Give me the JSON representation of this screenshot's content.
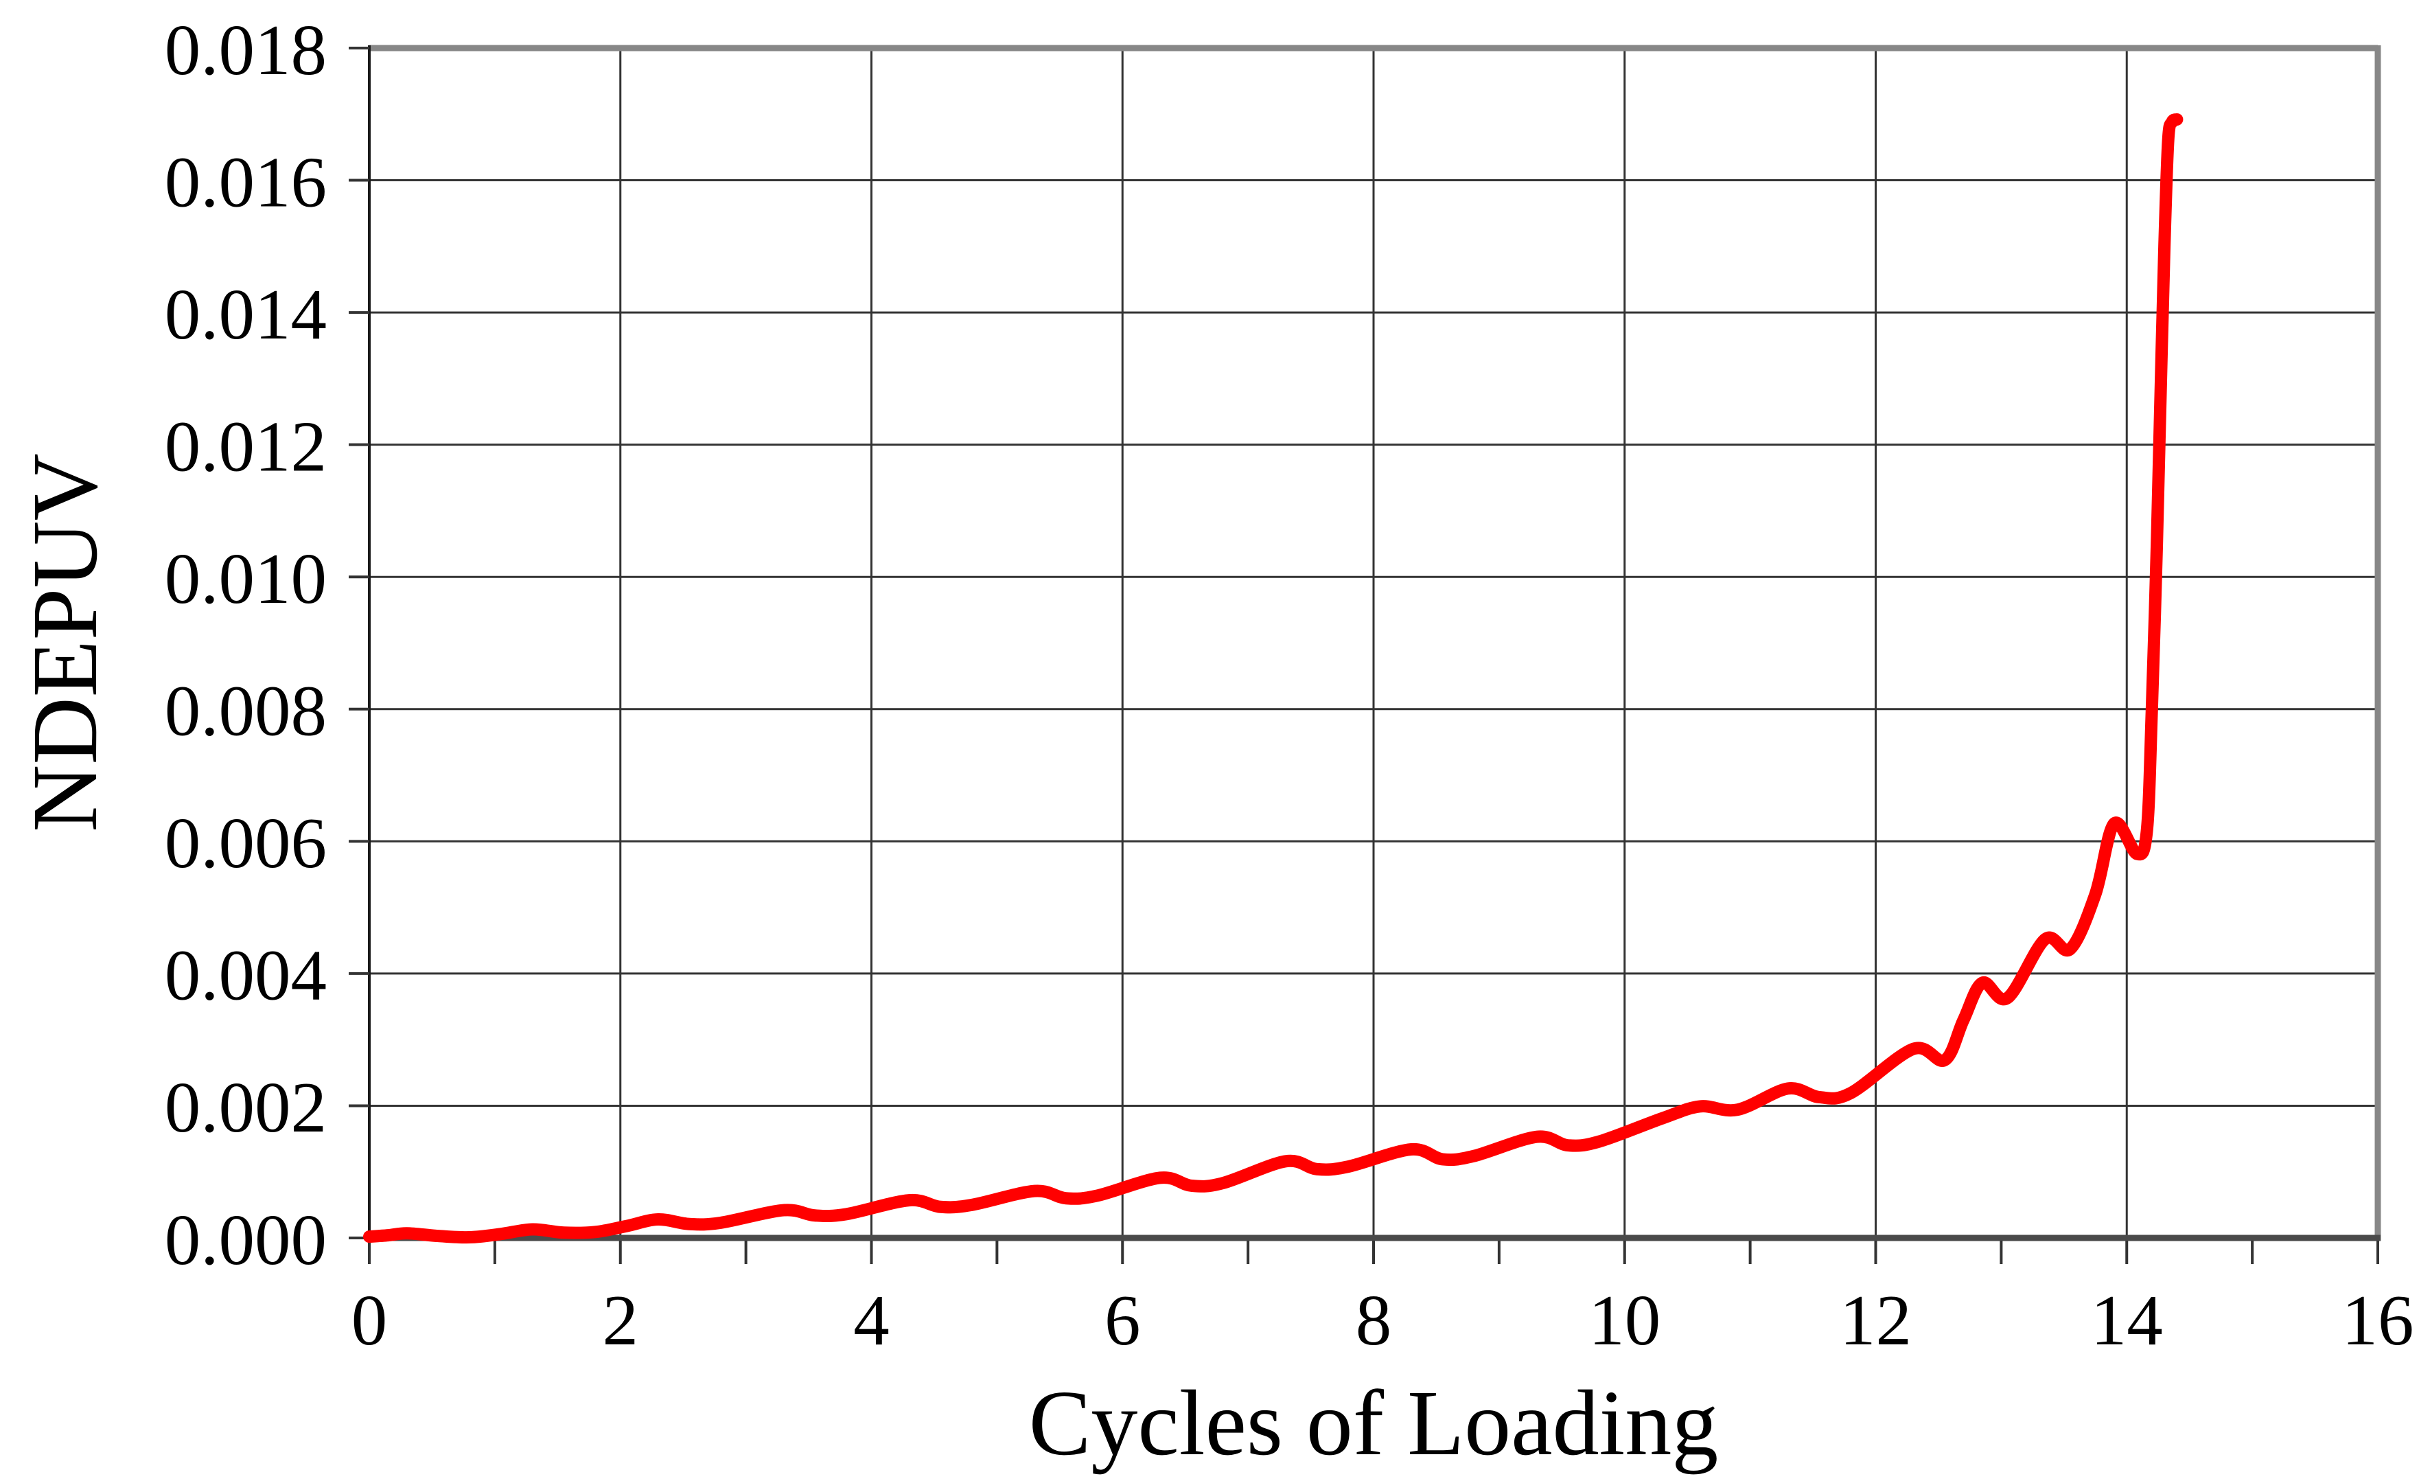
{
  "chart_data": {
    "type": "line",
    "title": "",
    "xlabel": "Cycles of Loading",
    "ylabel": "NDEPUV",
    "xlim": [
      0,
      16
    ],
    "ylim": [
      0,
      0.018
    ],
    "x_tick_values": [
      0,
      2,
      4,
      6,
      8,
      10,
      12,
      14,
      16
    ],
    "x_tick_labels": [
      "0",
      "2",
      "4",
      "6",
      "8",
      "10",
      "12",
      "14",
      "16"
    ],
    "x_minor_tick_values": [
      0,
      1,
      2,
      3,
      4,
      5,
      6,
      7,
      8,
      9,
      10,
      11,
      12,
      13,
      14,
      15,
      16
    ],
    "y_tick_values": [
      0,
      0.002,
      0.004,
      0.006,
      0.008,
      0.01,
      0.012,
      0.014,
      0.016,
      0.018
    ],
    "y_tick_labels": [
      "0.000",
      "0.002",
      "0.004",
      "0.006",
      "0.008",
      "0.010",
      "0.012",
      "0.014",
      "0.016",
      "0.018"
    ],
    "grid": {
      "show": true,
      "x_major_step": 2,
      "y_major_step": 0.002,
      "color": "#333333"
    },
    "legend": "none",
    "series": [
      {
        "name": "NDEPUV",
        "color": "#ff0000",
        "points": [
          [
            0.0,
            2e-05
          ],
          [
            0.15,
            4e-05
          ],
          [
            0.3,
            7e-05
          ],
          [
            0.55,
            3e-05
          ],
          [
            0.8,
            1e-05
          ],
          [
            1.05,
            6e-05
          ],
          [
            1.3,
            0.00013
          ],
          [
            1.55,
            8e-05
          ],
          [
            1.8,
            9e-05
          ],
          [
            2.05,
            0.00018
          ],
          [
            2.3,
            0.00028
          ],
          [
            2.55,
            0.00021
          ],
          [
            2.8,
            0.00023
          ],
          [
            3.3,
            0.00042
          ],
          [
            3.55,
            0.00034
          ],
          [
            3.8,
            0.00036
          ],
          [
            4.3,
            0.00057
          ],
          [
            4.55,
            0.00047
          ],
          [
            4.8,
            0.0005
          ],
          [
            5.3,
            0.00071
          ],
          [
            5.55,
            0.0006
          ],
          [
            5.8,
            0.00064
          ],
          [
            6.3,
            0.00091
          ],
          [
            6.55,
            0.00079
          ],
          [
            6.8,
            0.00083
          ],
          [
            7.3,
            0.00116
          ],
          [
            7.55,
            0.00104
          ],
          [
            7.8,
            0.00108
          ],
          [
            8.3,
            0.00134
          ],
          [
            8.55,
            0.00119
          ],
          [
            8.8,
            0.00124
          ],
          [
            9.3,
            0.00153
          ],
          [
            9.55,
            0.0014
          ],
          [
            9.8,
            0.00146
          ],
          [
            10.3,
            0.00181
          ],
          [
            10.6,
            0.00199
          ],
          [
            10.9,
            0.00194
          ],
          [
            11.3,
            0.00226
          ],
          [
            11.55,
            0.00213
          ],
          [
            11.8,
            0.00219
          ],
          [
            12.3,
            0.00286
          ],
          [
            12.55,
            0.00269
          ],
          [
            12.7,
            0.0033
          ],
          [
            12.85,
            0.00386
          ],
          [
            13.05,
            0.00363
          ],
          [
            13.35,
            0.00452
          ],
          [
            13.55,
            0.00437
          ],
          [
            13.75,
            0.0052
          ],
          [
            13.9,
            0.00627
          ],
          [
            14.08,
            0.00581
          ],
          [
            14.16,
            0.00615
          ],
          [
            14.2,
            0.008
          ],
          [
            14.24,
            0.0105
          ],
          [
            14.27,
            0.0128
          ],
          [
            14.3,
            0.015
          ],
          [
            14.33,
            0.0166
          ],
          [
            14.36,
            0.01688
          ],
          [
            14.4,
            0.01692
          ]
        ]
      }
    ],
    "notable_features": {
      "oscillation_period_cycles": 1,
      "local_peak_before_failure": {
        "x": 13.9,
        "y": 0.0063
      },
      "dip_before_failure": {
        "x": 14.1,
        "y": 0.0058
      },
      "failure_spike_top": {
        "x": 14.36,
        "y": 0.0169
      }
    }
  },
  "style": {
    "series_color": "#ff0000",
    "grid_color": "#333333",
    "plot_border_color": "#878787",
    "x_axis_color": "#4a4a4a",
    "y_axis_color": "#1a1a1a",
    "background": "#ffffff"
  }
}
